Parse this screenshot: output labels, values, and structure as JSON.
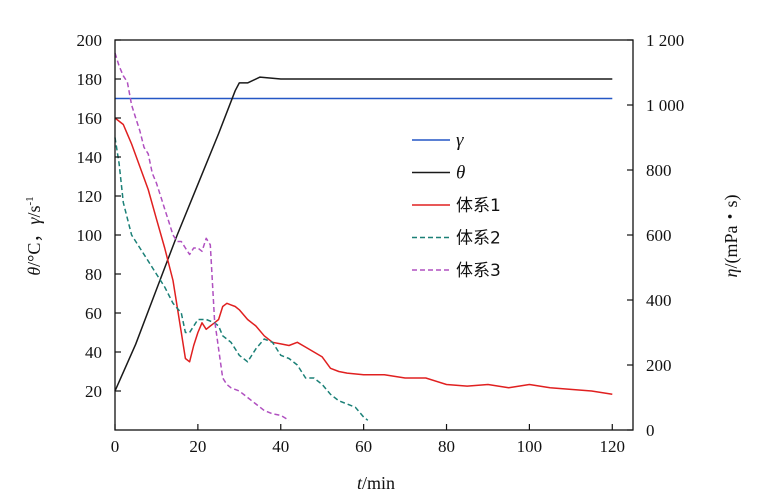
{
  "chart_data": {
    "type": "line",
    "xlabel": {
      "var": "t",
      "unit": "/min"
    },
    "ylabel_left": {
      "var1": "θ",
      "unit1": "/°C，",
      "var2": "γ",
      "unit2": "/s",
      "sup": "-1"
    },
    "ylabel_right": {
      "var": "η",
      "unit": "/(mPa・s)"
    },
    "xlim": [
      0,
      125
    ],
    "ylim_left": [
      0,
      200
    ],
    "ylim_right": [
      0,
      1200
    ],
    "x_ticks": [
      0,
      20,
      40,
      60,
      80,
      100,
      120
    ],
    "x_tick_labels": [
      "0",
      "20",
      "40",
      "60",
      "80",
      "100",
      "120"
    ],
    "y_left_ticks": [
      20,
      40,
      60,
      80,
      100,
      120,
      140,
      160,
      180,
      200
    ],
    "y_left_tick_labels": [
      "20",
      "40",
      "60",
      "80",
      "100",
      "120",
      "140",
      "160",
      "180",
      "200"
    ],
    "y_right_ticks": [
      0,
      200,
      400,
      600,
      800,
      1000,
      1200
    ],
    "y_right_tick_labels": [
      "0",
      "200",
      "400",
      "600",
      "800",
      "1 000",
      "1 200"
    ],
    "legend_position": "center",
    "grid": false,
    "series": [
      {
        "name": "γ",
        "italic": true,
        "axis": "left",
        "color": "#2457c5",
        "dash": "",
        "x": [
          0,
          120
        ],
        "y": [
          170,
          170
        ]
      },
      {
        "name": "θ",
        "italic": true,
        "axis": "left",
        "color": "#1a1a1a",
        "dash": "",
        "x": [
          0,
          5,
          10,
          15,
          20,
          25,
          29,
          30,
          32,
          35,
          40,
          60,
          80,
          100,
          120
        ],
        "y": [
          20,
          44,
          72,
          100,
          126,
          152,
          174,
          178,
          178,
          181,
          180,
          180,
          180,
          180,
          180
        ]
      },
      {
        "name": "体系1",
        "italic": false,
        "axis": "right",
        "color": "#e02020",
        "dash": "",
        "x": [
          0,
          2,
          4,
          6,
          8,
          10,
          12,
          14,
          16,
          17,
          18,
          19,
          20,
          21,
          22,
          23,
          24,
          25,
          26,
          27,
          28,
          29,
          30,
          32,
          34,
          36,
          38,
          40,
          42,
          44,
          46,
          48,
          50,
          52,
          54,
          56,
          60,
          65,
          70,
          75,
          80,
          85,
          90,
          95,
          100,
          105,
          110,
          115,
          120
        ],
        "y": [
          960,
          940,
          880,
          810,
          740,
          650,
          560,
          460,
          300,
          220,
          210,
          260,
          300,
          330,
          310,
          320,
          330,
          340,
          380,
          390,
          385,
          380,
          370,
          340,
          320,
          290,
          270,
          265,
          260,
          270,
          255,
          240,
          225,
          190,
          180,
          175,
          170,
          170,
          160,
          160,
          140,
          135,
          140,
          130,
          140,
          130,
          125,
          120,
          110
        ]
      },
      {
        "name": "体系2",
        "italic": false,
        "axis": "right",
        "color": "#1b8077",
        "dash": "5,3",
        "x": [
          0,
          1,
          2,
          4,
          6,
          8,
          10,
          12,
          14,
          16,
          17,
          18,
          20,
          22,
          24,
          25,
          26,
          28,
          30,
          32,
          34,
          36,
          38,
          40,
          42,
          44,
          46,
          48,
          50,
          52,
          54,
          56,
          58,
          60,
          61
        ],
        "y": [
          900,
          820,
          700,
          600,
          560,
          520,
          480,
          440,
          390,
          360,
          300,
          300,
          340,
          340,
          330,
          320,
          290,
          270,
          230,
          210,
          250,
          280,
          270,
          230,
          220,
          200,
          160,
          160,
          140,
          110,
          90,
          80,
          70,
          40,
          30
        ]
      },
      {
        "name": "体系3",
        "italic": false,
        "axis": "right",
        "color": "#b050c0",
        "dash": "5,3",
        "x": [
          0,
          1,
          2,
          3,
          4,
          5,
          6,
          7,
          8,
          9,
          10,
          11,
          12,
          13,
          14,
          15,
          16,
          17,
          18,
          19,
          20,
          21,
          22,
          23,
          24,
          25,
          26,
          27,
          28,
          30,
          32,
          34,
          36,
          38,
          40,
          42
        ],
        "y": [
          1160,
          1120,
          1090,
          1070,
          1000,
          960,
          920,
          870,
          850,
          790,
          760,
          720,
          680,
          640,
          600,
          580,
          580,
          560,
          540,
          560,
          560,
          550,
          590,
          570,
          340,
          250,
          160,
          140,
          130,
          120,
          100,
          80,
          60,
          50,
          45,
          30
        ]
      }
    ]
  }
}
